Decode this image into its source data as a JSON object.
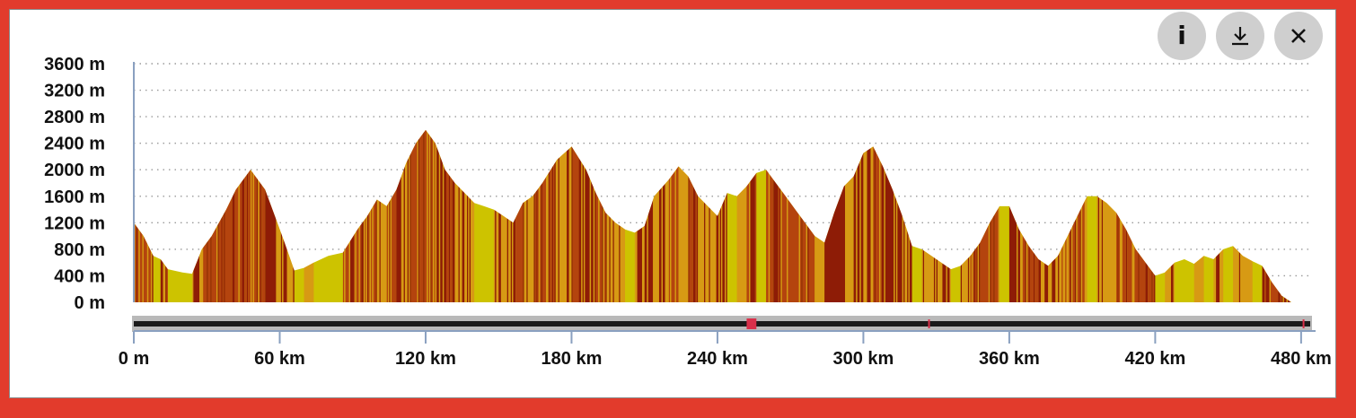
{
  "toolbar": {
    "info_icon": "info-icon",
    "download_icon": "download-icon",
    "close_icon": "close-icon"
  },
  "colors": {
    "frame_border": "#e23b2c",
    "flat": "#cdc300",
    "moderate": "#d79a14",
    "steep": "#b4440e",
    "very_steep": "#8e1c06",
    "track": "#1a1a1a",
    "track_highlight": "#d9304a"
  },
  "chart_data": {
    "type": "area",
    "title": "",
    "xlabel": "",
    "ylabel": "",
    "xlim": [
      0,
      483
    ],
    "ylim": [
      0,
      3600
    ],
    "grid": true,
    "y_ticks": [
      "0 m",
      "400 m",
      "800 m",
      "1200 m",
      "1600 m",
      "2000 m",
      "2400 m",
      "2800 m",
      "3200 m",
      "3600 m"
    ],
    "y_tick_values": [
      0,
      400,
      800,
      1200,
      1600,
      2000,
      2400,
      2800,
      3200,
      3600
    ],
    "x_ticks": [
      "0 m",
      "60 km",
      "120 km",
      "180 km",
      "240 km",
      "300 km",
      "360 km",
      "420 km",
      "480 km"
    ],
    "x_tick_values": [
      0,
      60,
      120,
      180,
      240,
      300,
      360,
      420,
      480
    ],
    "elevation_profile": {
      "x_km": [
        0,
        4,
        8,
        11,
        14,
        20,
        24,
        28,
        32,
        38,
        42,
        48,
        54,
        58,
        62,
        66,
        70,
        74,
        80,
        86,
        92,
        96,
        100,
        104,
        108,
        112,
        116,
        120,
        124,
        128,
        132,
        136,
        140,
        144,
        148,
        152,
        156,
        160,
        164,
        168,
        174,
        180,
        186,
        190,
        194,
        198,
        202,
        206,
        210,
        214,
        220,
        224,
        228,
        232,
        236,
        240,
        244,
        248,
        252,
        256,
        260,
        264,
        268,
        272,
        276,
        280,
        284,
        288,
        292,
        296,
        300,
        304,
        308,
        312,
        316,
        320,
        324,
        328,
        332,
        336,
        340,
        344,
        348,
        352,
        356,
        360,
        364,
        368,
        372,
        376,
        380,
        384,
        388,
        392,
        396,
        400,
        404,
        408,
        412,
        416,
        420,
        424,
        428,
        432,
        436,
        440,
        444,
        448,
        452,
        456,
        460,
        464,
        468,
        472,
        476,
        480,
        483
      ],
      "elevation_m": [
        1200,
        1000,
        700,
        650,
        500,
        450,
        430,
        800,
        1000,
        1400,
        1700,
        2000,
        1700,
        1300,
        900,
        480,
        520,
        600,
        700,
        750,
        1100,
        1300,
        1550,
        1450,
        1700,
        2100,
        2400,
        2600,
        2400,
        2000,
        1800,
        1650,
        1500,
        1450,
        1400,
        1300,
        1200,
        1500,
        1600,
        1800,
        2150,
        2350,
        2000,
        1650,
        1350,
        1200,
        1100,
        1050,
        1150,
        1600,
        1850,
        2050,
        1900,
        1600,
        1450,
        1300,
        1650,
        1600,
        1750,
        1950,
        2000,
        1800,
        1600,
        1400,
        1200,
        1000,
        900,
        1350,
        1750,
        1900,
        2250,
        2350,
        2050,
        1700,
        1300,
        850,
        800,
        700,
        600,
        500,
        550,
        700,
        900,
        1200,
        1450,
        1450,
        1100,
        850,
        650,
        550,
        700,
        1000,
        1300,
        1600,
        1600,
        1500,
        1350,
        1100,
        800,
        600,
        400,
        450,
        600,
        650,
        580,
        700,
        650,
        800,
        850,
        700,
        620,
        550,
        300,
        100,
        0,
        0,
        0
      ],
      "steepness_classes": [
        "flat",
        "moderate",
        "steep",
        "very_steep"
      ]
    },
    "track_highlights_km": [
      252,
      254,
      256,
      327,
      481
    ]
  }
}
